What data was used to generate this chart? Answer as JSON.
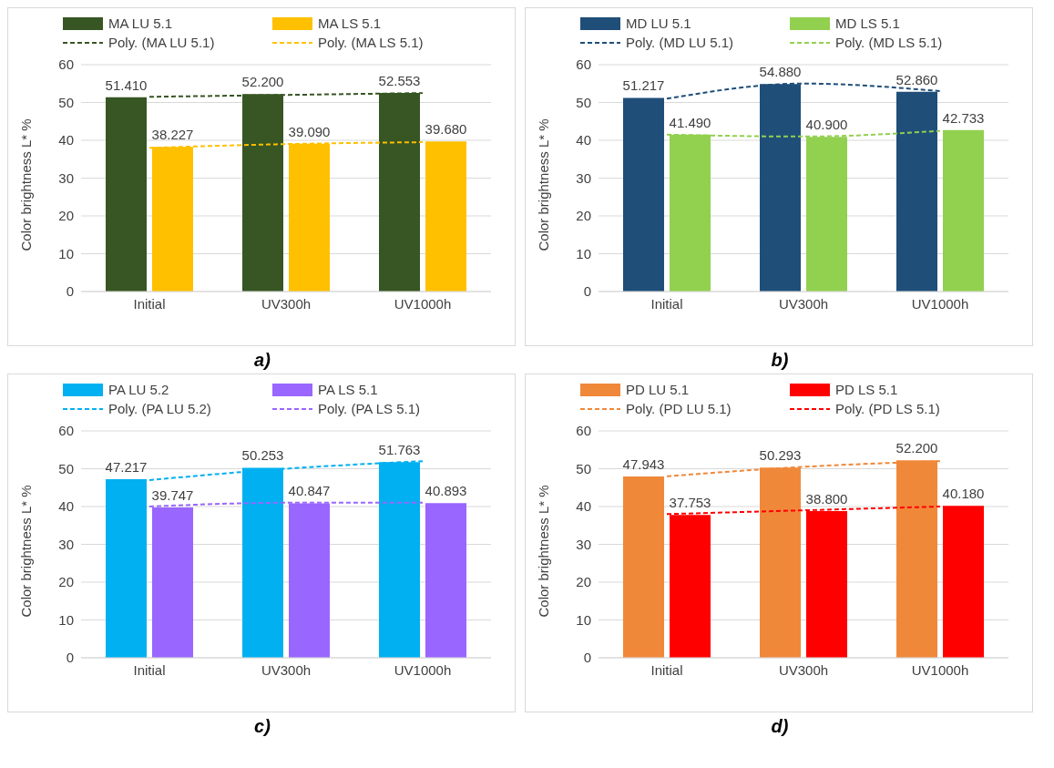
{
  "chart_data": [
    {
      "type": "bar",
      "categories": [
        "Initial",
        "UV300h",
        "UV1000h"
      ],
      "ylabel": "Color brightness L* %",
      "ylim": [
        0,
        60
      ],
      "yticks": [
        0,
        10,
        20,
        30,
        40,
        50,
        60
      ],
      "grid": "y",
      "legend": "top",
      "annotations": [
        "a)"
      ],
      "line_style": "dashed",
      "marker": "none",
      "series": [
        {
          "name": "MA LU 5.1",
          "color": "#375623",
          "values": [
            51.41,
            52.2,
            52.553
          ],
          "value_labels": [
            "51.410",
            "52.200",
            "52.553"
          ]
        },
        {
          "name": "MA LS 5.1",
          "color": "#ffc000",
          "values": [
            38.227,
            39.09,
            39.68
          ],
          "value_labels": [
            "38.227",
            "39.090",
            "39.680"
          ]
        },
        {
          "name": "Poly. (MA LU 5.1)",
          "type": "line",
          "color": "#375623",
          "values": [
            51.5,
            52,
            52.5
          ]
        },
        {
          "name": "Poly. (MA LS 5.1)",
          "type": "line",
          "color": "#ffc000",
          "values": [
            38,
            39,
            39.5
          ]
        }
      ]
    },
    {
      "type": "bar",
      "categories": [
        "Initial",
        "UV300h",
        "UV1000h"
      ],
      "ylabel": "Color brightness L* %",
      "ylim": [
        0,
        60
      ],
      "yticks": [
        0,
        10,
        20,
        30,
        40,
        50,
        60
      ],
      "grid": "y",
      "legend": "top",
      "annotations": [
        "b)"
      ],
      "line_style": "dashed",
      "marker": "none",
      "series": [
        {
          "name": "MD LU 5.1",
          "color": "#1f4e79",
          "values": [
            51.217,
            54.88,
            52.86
          ],
          "value_labels": [
            "51.217",
            "54.880",
            "52.860"
          ]
        },
        {
          "name": "MD LS 5.1",
          "color": "#92d050",
          "values": [
            41.49,
            40.9,
            42.733
          ],
          "value_labels": [
            "41.490",
            "40.900",
            "42.733"
          ]
        },
        {
          "name": "Poly. (MD LU 5.1)",
          "type": "line",
          "color": "#1f4e79",
          "values": [
            51,
            55,
            53
          ]
        },
        {
          "name": "Poly. (MD LS 5.1)",
          "type": "line",
          "color": "#92d050",
          "values": [
            41.5,
            41,
            42.5
          ]
        }
      ]
    },
    {
      "type": "bar",
      "categories": [
        "Initial",
        "UV300h",
        "UV1000h"
      ],
      "ylabel": "Color brightness L* %",
      "ylim": [
        0,
        60
      ],
      "yticks": [
        0,
        10,
        20,
        30,
        40,
        50,
        60
      ],
      "grid": "y",
      "legend": "top",
      "annotations": [
        "c)"
      ],
      "line_style": "dashed",
      "marker": "none",
      "series": [
        {
          "name": "PA LU 5.2",
          "color": "#00b0f0",
          "values": [
            47.217,
            50.253,
            51.763
          ],
          "value_labels": [
            "47.217",
            "50.253",
            "51.763"
          ]
        },
        {
          "name": "PA LS 5.1",
          "color": "#9966ff",
          "values": [
            39.747,
            40.847,
            40.893
          ],
          "value_labels": [
            "39.747",
            "40.847",
            "40.893"
          ]
        },
        {
          "name": "Poly. (PA LU 5.2)",
          "type": "line",
          "color": "#00b0f0",
          "values": [
            47,
            50,
            52
          ]
        },
        {
          "name": "Poly. (PA LS 5.1)",
          "type": "line",
          "color": "#9966ff",
          "values": [
            40,
            41,
            41
          ]
        }
      ]
    },
    {
      "type": "bar",
      "categories": [
        "Initial",
        "UV300h",
        "UV1000h"
      ],
      "ylabel": "Color brightness L* %",
      "ylim": [
        0,
        60
      ],
      "yticks": [
        0,
        10,
        20,
        30,
        40,
        50,
        60
      ],
      "grid": "y",
      "legend": "top",
      "annotations": [
        "d)"
      ],
      "line_style": "dashed",
      "marker": "none",
      "series": [
        {
          "name": "PD LU 5.1",
          "color": "#f0883a",
          "values": [
            47.943,
            50.293,
            52.2
          ],
          "value_labels": [
            "47.943",
            "50.293",
            "52.200"
          ]
        },
        {
          "name": "PD LS 5.1",
          "color": "#ff0000",
          "values": [
            37.753,
            38.8,
            40.18
          ],
          "value_labels": [
            "37.753",
            "38.800",
            "40.180"
          ]
        },
        {
          "name": "Poly. (PD LU 5.1)",
          "type": "line",
          "color": "#f0883a",
          "values": [
            48,
            50.5,
            52
          ]
        },
        {
          "name": "Poly. (PD LS 5.1)",
          "type": "line",
          "color": "#ff0000",
          "values": [
            38,
            39,
            40
          ]
        }
      ]
    }
  ]
}
